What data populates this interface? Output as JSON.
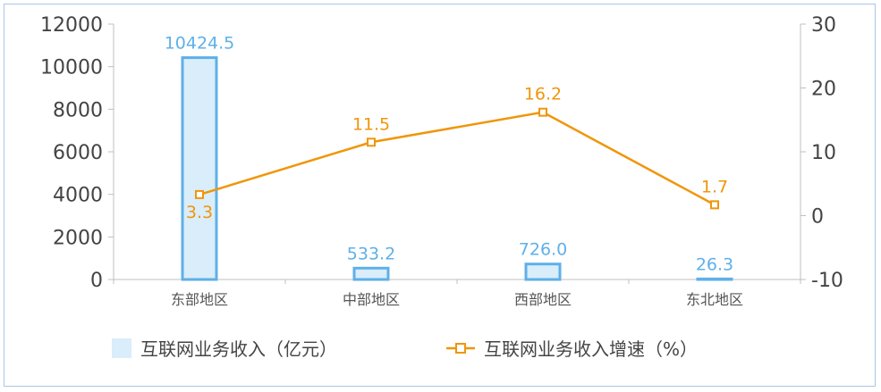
{
  "chart_data": {
    "type": "bar+line",
    "categories": [
      "东部地区",
      "中部地区",
      "西部地区",
      "东北地区"
    ],
    "series": [
      {
        "name": "互联网业务收入（亿元）",
        "type": "bar",
        "axis": "left",
        "values": [
          10424.5,
          533.2,
          726.0,
          26.3
        ],
        "labels": [
          "10424.5",
          "533.2",
          "726.0",
          "26.3"
        ],
        "color": "#5fb0e8",
        "fill": "#d9edfa"
      },
      {
        "name": "互联网业务收入增速（%）",
        "type": "line",
        "axis": "right",
        "values": [
          3.3,
          11.5,
          16.2,
          1.7
        ],
        "labels": [
          "3.3",
          "11.5",
          "16.2",
          "1.7"
        ],
        "color": "#f0960a"
      }
    ],
    "y_left": {
      "min": 0,
      "max": 12000,
      "ticks": [
        "0",
        "2000",
        "4000",
        "6000",
        "8000",
        "10000",
        "12000"
      ]
    },
    "y_right": {
      "min": -10,
      "max": 30,
      "ticks": [
        "-10",
        "0",
        "10",
        "20",
        "30"
      ]
    },
    "legend_position": "bottom",
    "grid": false
  }
}
